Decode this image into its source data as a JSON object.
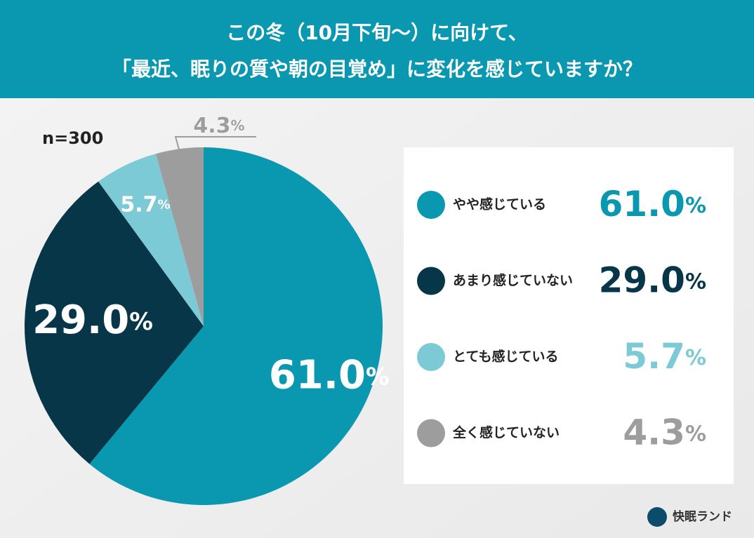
{
  "chart_data": {
    "type": "pie",
    "title": [
      "この冬（10月下旬〜）に向けて、",
      "「最近、眠りの質や朝の目覚め」に変化を感じていますか？"
    ],
    "note": "n=300",
    "categories": [
      "やや感じている",
      "あまり感じていない",
      "とても感じている",
      "全く感じていない"
    ],
    "values": [
      61.0,
      29.0,
      5.7,
      4.3
    ],
    "value_labels": [
      "61.0%",
      "29.0%",
      "5.7%",
      "4.3%"
    ],
    "colors": [
      "#0a97b0",
      "#073649",
      "#7ccad6",
      "#9d9d9d"
    ],
    "source": "快眠ランド"
  }
}
